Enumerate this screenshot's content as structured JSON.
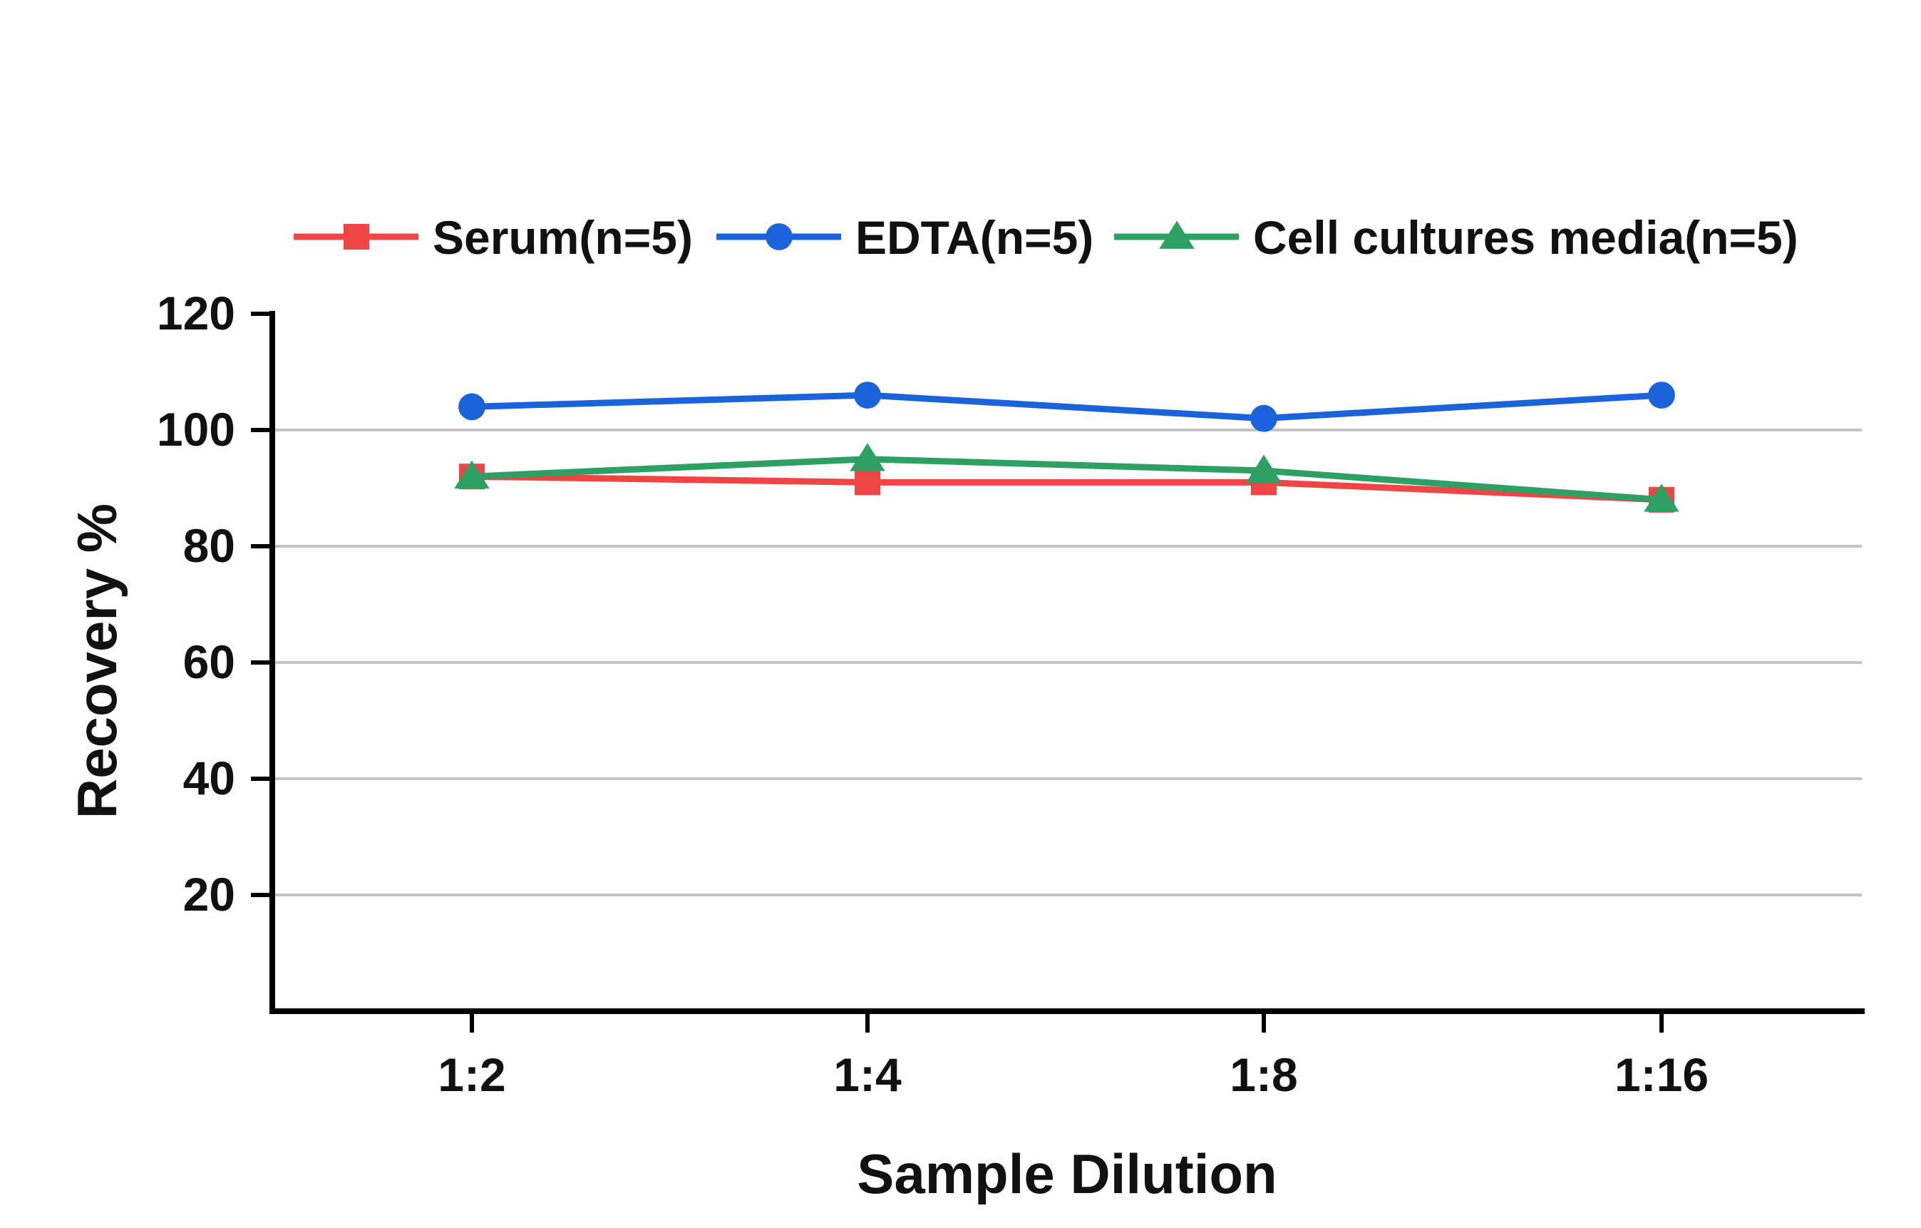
{
  "chart_data": {
    "type": "line",
    "title": "",
    "xlabel": "Sample Dilution",
    "ylabel": "Recovery %",
    "categories": [
      "1:2",
      "1:4",
      "1:8",
      "1:16"
    ],
    "ylim": [
      0,
      120
    ],
    "yticks": [
      20,
      40,
      60,
      80,
      100,
      120
    ],
    "grid": "horizontal",
    "legend_position": "top",
    "series": [
      {
        "name": "Serum(n=5)",
        "color": "#f04545",
        "marker": "square",
        "values": [
          92,
          91,
          91,
          88
        ]
      },
      {
        "name": "EDTA(n=5)",
        "color": "#1a63d8",
        "marker": "circle",
        "values": [
          104,
          106,
          102,
          106
        ]
      },
      {
        "name": "Cell cultures media(n=5)",
        "color": "#2ea063",
        "marker": "triangle",
        "values": [
          92,
          95,
          93,
          88
        ]
      }
    ]
  }
}
